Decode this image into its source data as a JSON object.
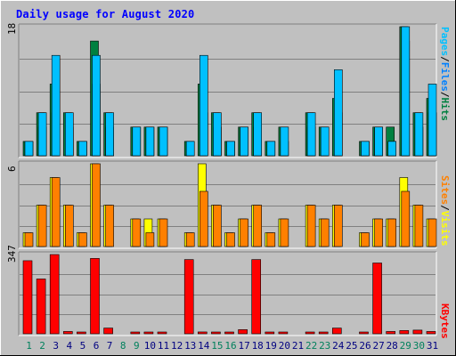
{
  "title": "Daily usage for August 2020",
  "colors": {
    "background": "#c0c0c0",
    "title": "#0000ff",
    "hits": "#008040",
    "files": "#0080ff",
    "pages": "#00c0ff",
    "visits": "#ffff00",
    "sites": "#ff8000",
    "kbytes": "#ff0000",
    "weekday_label": "#000080",
    "weekend_label": "#00805c"
  },
  "legend": {
    "top": [
      "Pages",
      "/",
      "Files",
      "/",
      "Hits"
    ],
    "middle": [
      "Sites",
      "/",
      "Visits"
    ],
    "bottom": [
      "KBytes"
    ]
  },
  "chart_data": {
    "type": "bar",
    "title": "Daily usage for August 2020",
    "categories": [
      "1",
      "2",
      "3",
      "4",
      "5",
      "6",
      "7",
      "8",
      "9",
      "10",
      "11",
      "12",
      "13",
      "14",
      "15",
      "16",
      "17",
      "18",
      "19",
      "20",
      "21",
      "22",
      "23",
      "24",
      "25",
      "26",
      "27",
      "28",
      "29",
      "30",
      "31"
    ],
    "weekend_days": [
      "1",
      "2",
      "8",
      "9",
      "15",
      "16",
      "22",
      "23",
      "29",
      "30"
    ],
    "panels": [
      {
        "name": "top",
        "ymax_label": "18",
        "ylim": [
          0,
          18
        ],
        "series": [
          {
            "name": "Hits",
            "color": "#008040",
            "values": [
              2,
              6,
              10,
              6,
              2,
              16,
              6,
              0,
              4,
              4,
              4,
              0,
              2,
              10,
              6,
              2,
              4,
              6,
              2,
              4,
              0,
              6,
              4,
              8,
              0,
              2,
              4,
              4,
              18,
              6,
              8
            ]
          },
          {
            "name": "Files",
            "color": "#0080ff",
            "values": [
              2,
              4,
              6,
              4,
              2,
              10,
              4,
              0,
              4,
              4,
              4,
              0,
              2,
              6,
              4,
              2,
              4,
              4,
              2,
              2,
              0,
              4,
              4,
              6,
              0,
              2,
              4,
              2,
              16,
              4,
              6
            ]
          },
          {
            "name": "Pages",
            "color": "#00c0ff",
            "values": [
              2,
              6,
              14,
              6,
              2,
              14,
              6,
              0,
              4,
              4,
              4,
              0,
              2,
              14,
              6,
              2,
              4,
              6,
              2,
              4,
              0,
              6,
              4,
              12,
              0,
              2,
              4,
              2,
              18,
              6,
              10
            ]
          }
        ]
      },
      {
        "name": "middle",
        "ymax_label": "6",
        "ylim": [
          0,
          6
        ],
        "series": [
          {
            "name": "Visits",
            "color": "#ffff00",
            "values": [
              1,
              3,
              5,
              3,
              1,
              6,
              3,
              0,
              2,
              2,
              2,
              0,
              1,
              6,
              3,
              1,
              2,
              3,
              1,
              2,
              0,
              3,
              2,
              3,
              0,
              1,
              2,
              2,
              5,
              3,
              2
            ]
          },
          {
            "name": "Sites",
            "color": "#ff8000",
            "values": [
              1,
              3,
              5,
              3,
              1,
              6,
              3,
              0,
              2,
              1,
              2,
              0,
              1,
              4,
              3,
              1,
              2,
              3,
              1,
              2,
              0,
              3,
              2,
              3,
              0,
              1,
              2,
              2,
              4,
              3,
              2
            ]
          }
        ]
      },
      {
        "name": "bottom",
        "ymax_label": "347",
        "ylim": [
          0,
          347
        ],
        "series": [
          {
            "name": "KBytes",
            "color": "#ff0000",
            "values": [
              320,
              240,
              347,
              10,
              5,
              330,
              25,
              0,
              4,
              4,
              4,
              0,
              325,
              8,
              4,
              4,
              18,
              325,
              4,
              4,
              0,
              4,
              4,
              25,
              0,
              4,
              310,
              10,
              14,
              16,
              10
            ]
          }
        ]
      }
    ]
  }
}
